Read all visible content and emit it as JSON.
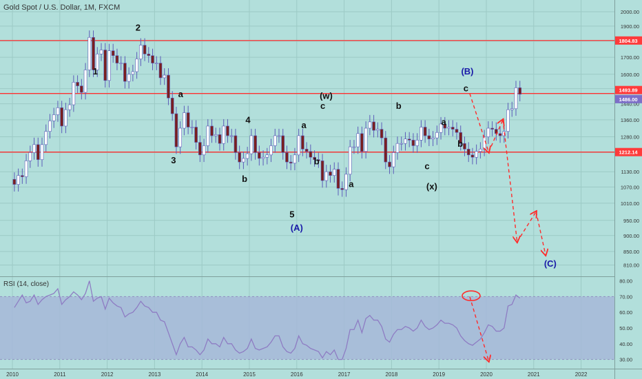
{
  "header": {
    "title": "Gold Spot / U.S. Dollar, 1M, FXCM",
    "rsi_title": "RSI (14, close)"
  },
  "colors": {
    "background": "#b2dfdb",
    "candle_up": "#ffffff",
    "candle_down": "#7a1f1f",
    "candle_outline": "#5c5cb8",
    "hline": "#ff3030",
    "rsi_line": "#8e7cc3",
    "rsi_band": "#a6b8d8",
    "arrow": "#ff2a2a",
    "wave_black": "#111111",
    "wave_blue": "#1a1aa8",
    "price_tag_red": "#ff3b3b",
    "price_tag_purple": "#7d6fc8"
  },
  "price_axis": {
    "ticks": [
      "2000.00",
      "1900.00",
      "1800.00",
      "1700.00",
      "1600.00",
      "1520.00",
      "1440.00",
      "1360.00",
      "1280.00",
      "1210.00",
      "1130.00",
      "1070.00",
      "1010.00",
      "950.00",
      "900.00",
      "850.00",
      "810.00"
    ],
    "tags": [
      {
        "value": 1804.83,
        "text": "1804.83",
        "color": "#ff3b3b"
      },
      {
        "value": 1493.89,
        "text": "1493.89",
        "color": "#ff3b3b"
      },
      {
        "value": 1486.0,
        "text": "1486.00",
        "color": "#7d6fc8"
      },
      {
        "value": 1212.14,
        "text": "1212.14",
        "color": "#ff3b3b"
      }
    ]
  },
  "rsi_axis": {
    "ticks": [
      "80.00",
      "70.00",
      "60.00",
      "50.00",
      "40.00",
      "30.00"
    ]
  },
  "time_axis": {
    "labels": [
      "2010",
      "2011",
      "2012",
      "2013",
      "2014",
      "2015",
      "2016",
      "2017",
      "2018",
      "2019",
      "2020",
      "2021",
      "2022"
    ]
  },
  "chart_data": {
    "type": "candlestick",
    "title": "Gold Spot / U.S. Dollar, 1M, FXCM",
    "x_range": [
      2010.0,
      2022.6
    ],
    "y_range": [
      780,
      2060
    ],
    "y_scale": "log",
    "closes_monthly_from_2010_01": [
      1080,
      1115,
      1110,
      1175,
      1210,
      1245,
      1180,
      1245,
      1305,
      1355,
      1385,
      1420,
      1330,
      1410,
      1435,
      1555,
      1535,
      1500,
      1625,
      1825,
      1625,
      1720,
      1745,
      1565,
      1740,
      1710,
      1665,
      1665,
      1560,
      1600,
      1615,
      1690,
      1775,
      1720,
      1710,
      1665,
      1665,
      1580,
      1595,
      1470,
      1390,
      1235,
      1320,
      1395,
      1325,
      1325,
      1255,
      1200,
      1240,
      1330,
      1285,
      1290,
      1250,
      1330,
      1285,
      1285,
      1210,
      1170,
      1185,
      1205,
      1285,
      1210,
      1185,
      1190,
      1200,
      1240,
      1285,
      1285,
      1210,
      1170,
      1165,
      1200,
      1285,
      1225,
      1215,
      1190,
      1180,
      1175,
      1095,
      1130,
      1115,
      1140,
      1065,
      1060,
      1120,
      1235,
      1235,
      1295,
      1215,
      1320,
      1350,
      1310,
      1315,
      1275,
      1170,
      1150,
      1210,
      1250,
      1250,
      1270,
      1265,
      1240,
      1265,
      1325,
      1285,
      1270,
      1275,
      1300,
      1340,
      1320,
      1325,
      1315,
      1300,
      1250,
      1225,
      1200,
      1190,
      1215,
      1225,
      1280,
      1320,
      1315,
      1295,
      1285,
      1305,
      1410,
      1415,
      1525,
      1490
    ],
    "rsi_values_monthly_from_2010_01": [
      63,
      67,
      71,
      66,
      67,
      71,
      65,
      68,
      70,
      71,
      72,
      75,
      65,
      68,
      70,
      73,
      71,
      68,
      72,
      80,
      67,
      69,
      70,
      62,
      69,
      66,
      64,
      63,
      57,
      59,
      60,
      63,
      67,
      64,
      63,
      60,
      60,
      55,
      54,
      47,
      40,
      33,
      40,
      44,
      38,
      38,
      36,
      33,
      36,
      43,
      40,
      40,
      38,
      44,
      40,
      40,
      36,
      34,
      35,
      37,
      43,
      37,
      36,
      37,
      38,
      41,
      45,
      45,
      38,
      35,
      34,
      37,
      45,
      40,
      39,
      37,
      36,
      35,
      31,
      35,
      33,
      36,
      30,
      30,
      37,
      49,
      49,
      55,
      47,
      56,
      58,
      55,
      55,
      51,
      43,
      41,
      46,
      49,
      49,
      51,
      50,
      48,
      50,
      55,
      51,
      49,
      50,
      52,
      55,
      53,
      53,
      52,
      50,
      45,
      42,
      40,
      39,
      41,
      43,
      47,
      52,
      51,
      48,
      48,
      50,
      64,
      65,
      71,
      69
    ],
    "horizontal_lines": [
      1804.83,
      1493.89,
      1212.14
    ],
    "rsi_range": [
      25,
      82
    ],
    "rsi_band": [
      30,
      70
    ],
    "projection_path": [
      [
        2019.65,
        1493.89
      ],
      [
        2020.05,
        1212.14
      ],
      [
        2020.35,
        1360
      ],
      [
        2020.65,
        880
      ],
      [
        2021.05,
        980
      ],
      [
        2021.25,
        840
      ]
    ],
    "rsi_projection": [
      [
        2019.65,
        70
      ],
      [
        2020.05,
        29
      ]
    ],
    "wave_labels": [
      {
        "text": "1",
        "x": 2011.75,
        "y": 1600,
        "color": "black"
      },
      {
        "text": "2",
        "x": 2012.65,
        "y": 1870,
        "color": "black"
      },
      {
        "text": "a",
        "x": 2013.55,
        "y": 1475,
        "color": "black"
      },
      {
        "text": "3",
        "x": 2013.4,
        "y": 1165,
        "color": "black"
      },
      {
        "text": "4",
        "x": 2014.97,
        "y": 1345,
        "color": "black"
      },
      {
        "text": "b",
        "x": 2014.9,
        "y": 1090,
        "color": "black"
      },
      {
        "text": "5",
        "x": 2015.9,
        "y": 960,
        "color": "black"
      },
      {
        "text": "(A)",
        "x": 2016.0,
        "y": 915,
        "color": "blue"
      },
      {
        "text": "(w)",
        "x": 2016.62,
        "y": 1465,
        "color": "black"
      },
      {
        "text": "c",
        "x": 2016.55,
        "y": 1415,
        "color": "black"
      },
      {
        "text": "a",
        "x": 2016.15,
        "y": 1320,
        "color": "black"
      },
      {
        "text": "b",
        "x": 2016.42,
        "y": 1160,
        "color": "black"
      },
      {
        "text": "a",
        "x": 2017.15,
        "y": 1070,
        "color": "black"
      },
      {
        "text": "b",
        "x": 2018.15,
        "y": 1415,
        "color": "black"
      },
      {
        "text": "c",
        "x": 2018.75,
        "y": 1140,
        "color": "black"
      },
      {
        "text": "(x)",
        "x": 2018.85,
        "y": 1060,
        "color": "black"
      },
      {
        "text": "a",
        "x": 2019.1,
        "y": 1335,
        "color": "black"
      },
      {
        "text": "b",
        "x": 2019.45,
        "y": 1235,
        "color": "black"
      },
      {
        "text": "c",
        "x": 2019.57,
        "y": 1505,
        "color": "black"
      },
      {
        "text": "(B)",
        "x": 2019.6,
        "y": 1600,
        "color": "blue"
      },
      {
        "text": "(C)",
        "x": 2021.35,
        "y": 805,
        "color": "blue"
      }
    ]
  }
}
